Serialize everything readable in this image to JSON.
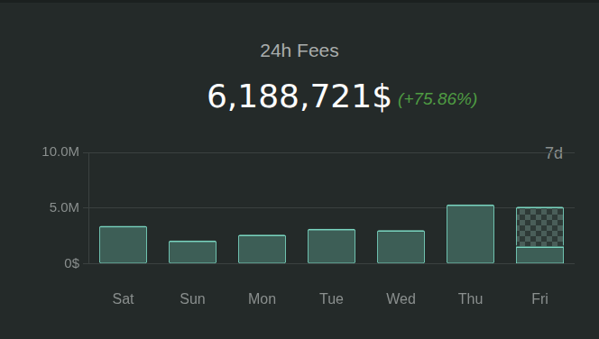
{
  "chart_data": {
    "type": "bar",
    "title": "24h Fees",
    "subtitle": "6,188,721$",
    "annotations": [
      "(+75.86%)",
      "7d"
    ],
    "categories": [
      "Sat",
      "Sun",
      "Mon",
      "Tue",
      "Wed",
      "Thu",
      "Fri"
    ],
    "series": [
      {
        "color": "#3d5e56",
        "values": [
          3420000,
          2100000,
          2630000,
          3160000,
          3030000,
          5330000,
          1580000
        ]
      },
      {
        "color": "#4a5e59",
        "values": [
          null,
          null,
          null,
          null,
          null,
          null,
          3550000
        ]
      }
    ],
    "stacked": true,
    "ylim": [
      0,
      10000000
    ],
    "yticks": [
      {
        "value": 0,
        "label": "0$"
      },
      {
        "value": 5000000,
        "label": "5.0M"
      },
      {
        "value": 10000000,
        "label": "10.0M"
      }
    ],
    "grid": true
  }
}
